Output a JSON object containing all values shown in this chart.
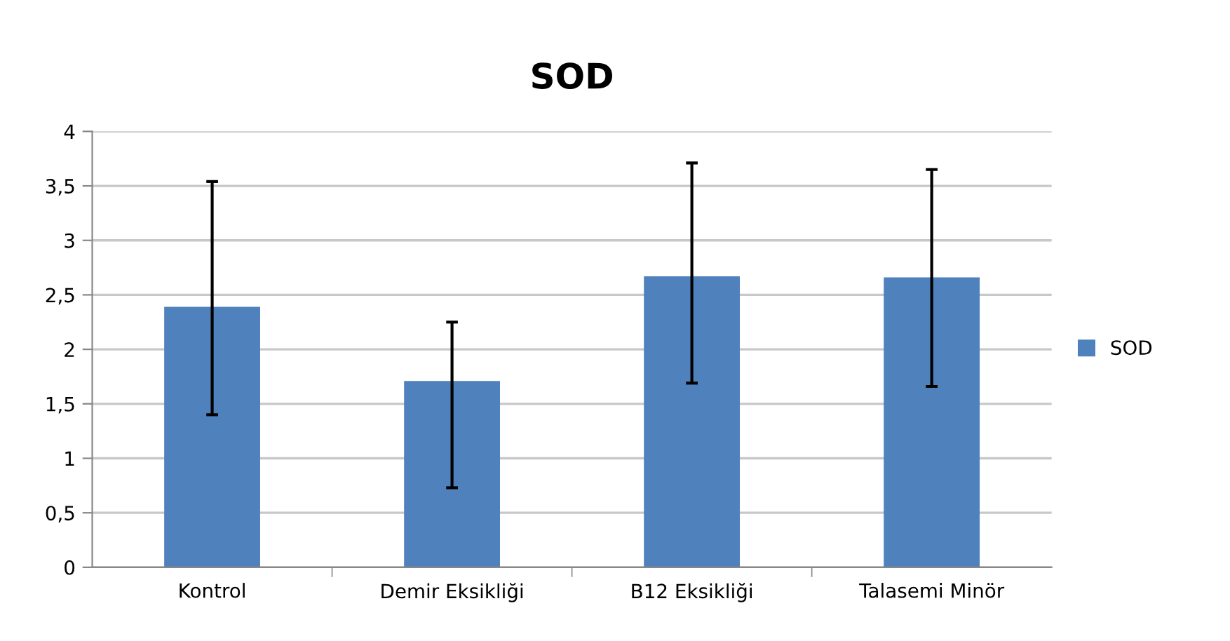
{
  "chart_data": {
    "type": "bar",
    "title": "SOD",
    "categories": [
      "Kontrol",
      "Demir Eksikliği",
      "B12 Eksikliği",
      "Talasemi Minör"
    ],
    "series": [
      {
        "name": "SOD",
        "color": "#4f81bd",
        "values": [
          2.39,
          1.71,
          2.67,
          2.66
        ],
        "errors": [
          [
            1.4,
            3.54
          ],
          [
            0.73,
            2.25
          ],
          [
            1.69,
            3.71
          ],
          [
            1.66,
            3.65
          ]
        ]
      }
    ],
    "ylim": [
      0,
      4
    ],
    "yticks": [
      0,
      {
        "value": 0.5,
        "label": "0,5"
      },
      1,
      {
        "value": 1.5,
        "label": "1,5"
      },
      2,
      {
        "value": 2.5,
        "label": "2,5"
      },
      3,
      {
        "value": 3.5,
        "label": "3,5"
      },
      4
    ],
    "grid": "y",
    "legend": "right"
  }
}
